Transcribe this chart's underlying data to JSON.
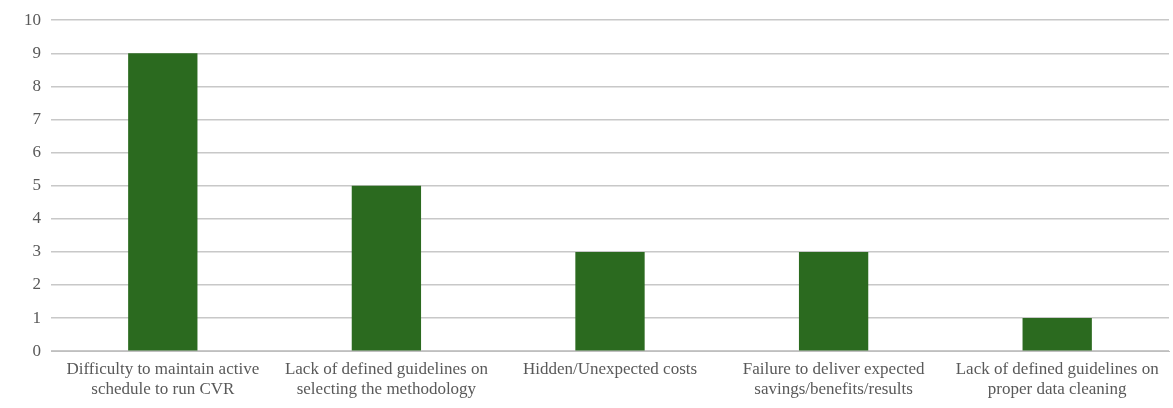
{
  "chart_data": {
    "type": "bar",
    "categories": [
      "Difficulty to maintain active schedule to run CVR",
      "Lack of defined guidelines on selecting the methodology",
      "Hidden/Unexpected costs",
      "Failure to deliver expected savings/benefits/results",
      "Lack of defined guidelines on proper data cleaning"
    ],
    "values": [
      9,
      5,
      3,
      3,
      1
    ],
    "color": "#2b6a1f",
    "ylim": [
      0,
      10
    ],
    "yticks": [
      0,
      1,
      2,
      3,
      4,
      5,
      6,
      7,
      8,
      9,
      10
    ],
    "grid": "y",
    "legend": false
  }
}
